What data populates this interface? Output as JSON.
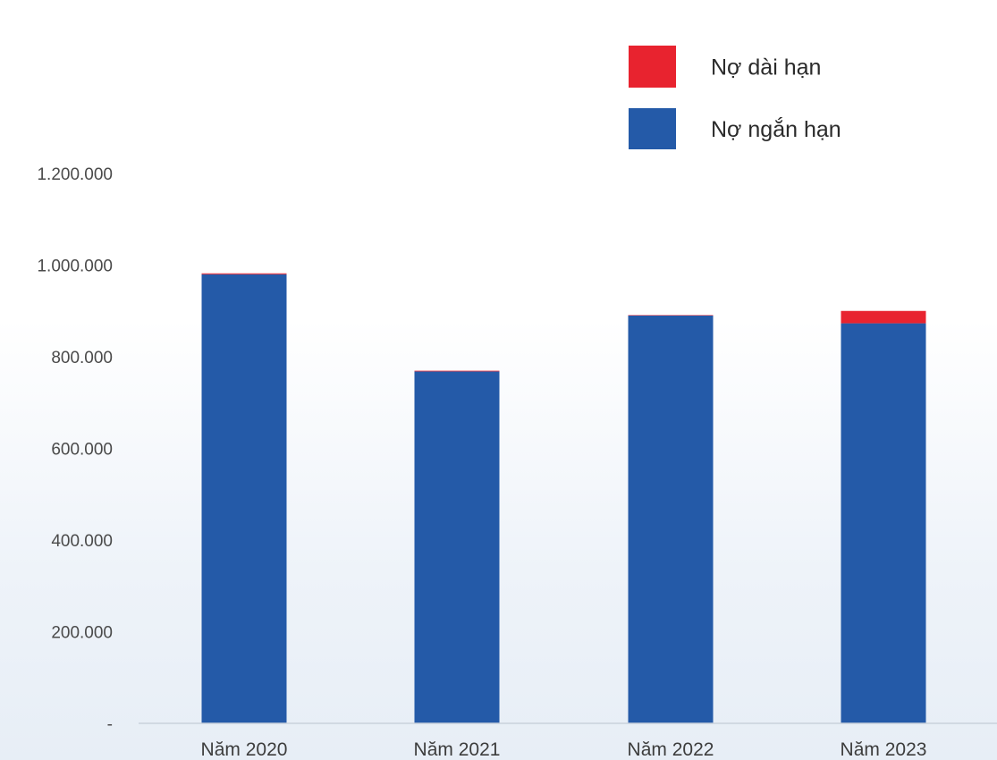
{
  "chart_data": {
    "type": "bar",
    "stacked": true,
    "categories": [
      "Năm 2020",
      "Năm 2021",
      "Năm 2022",
      "Năm 2023"
    ],
    "series": [
      {
        "name": "Nợ ngắn hạn",
        "color": "#245aa8",
        "values": [
          980000,
          768000,
          890000,
          873000
        ]
      },
      {
        "name": "Nợ dài hạn",
        "color": "#e8232f",
        "values": [
          2000,
          1500,
          1000,
          27000
        ]
      }
    ],
    "legend_order": [
      "Nợ dài hạn",
      "Nợ ngắn hạn"
    ],
    "legend_position": "top-right",
    "y_ticks": [
      0,
      200000,
      400000,
      600000,
      800000,
      1000000,
      1200000
    ],
    "y_tick_labels": [
      "-",
      "200.000",
      "400.000",
      "600.000",
      "800.000",
      "1.000.000",
      "1.200.000"
    ],
    "ylim": [
      0,
      1200000
    ],
    "grid": false,
    "title": "",
    "xlabel": "",
    "ylabel": ""
  }
}
